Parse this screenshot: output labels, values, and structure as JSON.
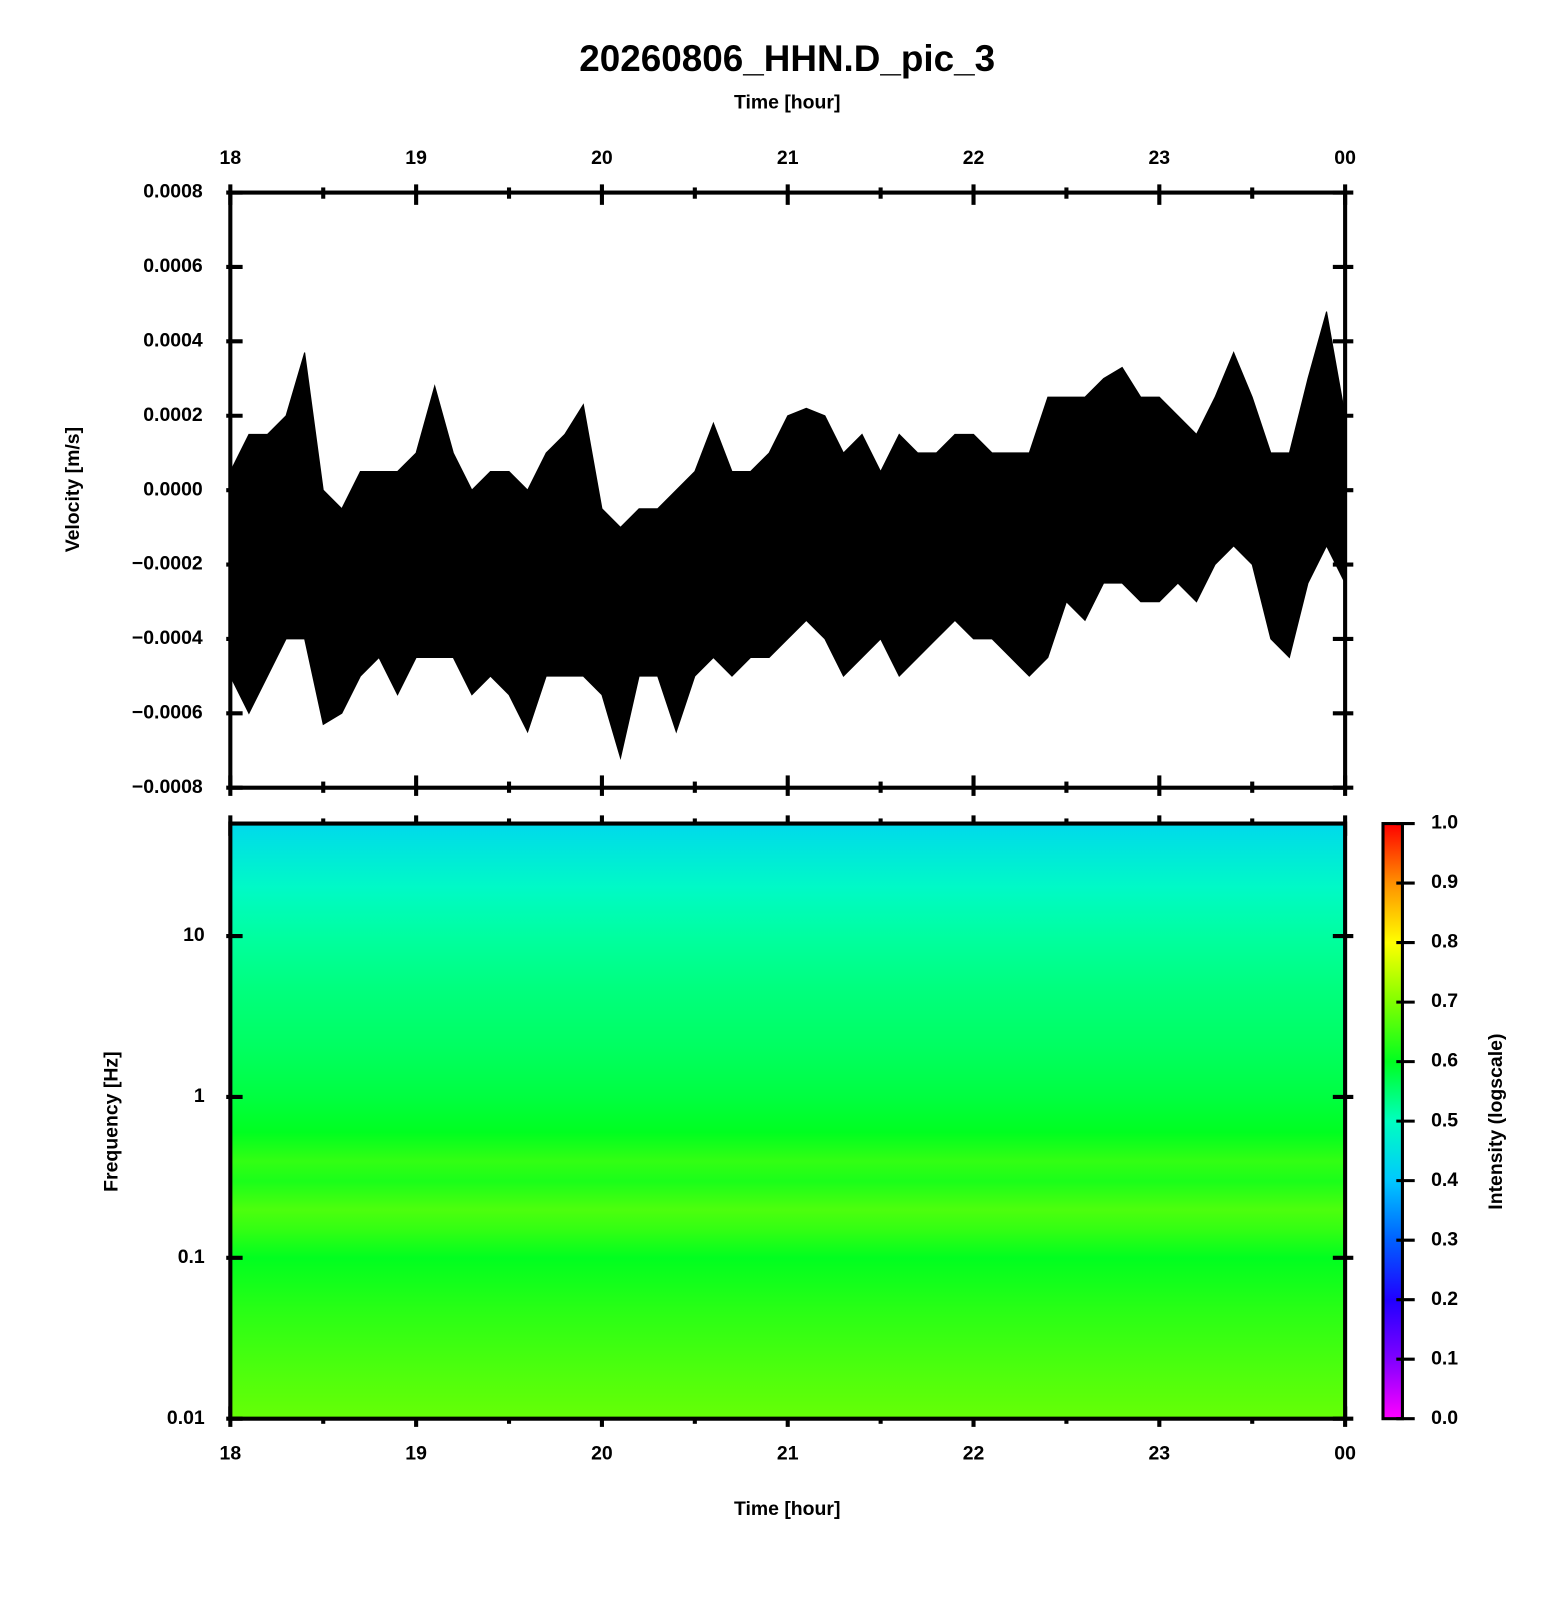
{
  "chart_data": [
    {
      "type": "band",
      "title": "20260806_HHN.D_pic_3",
      "xlabel": "Time [hour]",
      "ylabel": "Velocity [m/s]",
      "color": "#000000",
      "xlim": [
        18,
        24
      ],
      "xticks": [
        18,
        19,
        20,
        21,
        22,
        23,
        {
          "value": 24,
          "label": "00"
        }
      ],
      "xminorticks": [
        18.5,
        19.5,
        20.5,
        21.5,
        22.5,
        23.5
      ],
      "ylim": [
        -0.0008,
        0.0008
      ],
      "yticks": [
        {
          "value": -0.0008,
          "label": "−0.0008"
        },
        {
          "value": -0.0006,
          "label": "−0.0006"
        },
        {
          "value": -0.0004,
          "label": "−0.0004"
        },
        {
          "value": -0.0002,
          "label": "−0.0002"
        },
        {
          "value": 0,
          "label": "0.0000"
        },
        0.0002,
        0.0004,
        0.0006,
        0.0008
      ],
      "x": [
        18,
        18.1,
        18.2,
        18.3,
        18.4,
        18.5,
        18.6,
        18.7,
        18.8,
        18.9,
        19,
        19.1,
        19.2,
        19.3,
        19.4,
        19.5,
        19.6,
        19.7,
        19.8,
        19.9,
        20,
        20.1,
        20.2,
        20.3,
        20.4,
        20.5,
        20.6,
        20.7,
        20.8,
        20.9,
        21,
        21.1,
        21.2,
        21.3,
        21.4,
        21.5,
        21.6,
        21.7,
        21.8,
        21.9,
        22,
        22.1,
        22.2,
        22.3,
        22.4,
        22.5,
        22.6,
        22.7,
        22.8,
        22.9,
        23,
        23.1,
        23.2,
        23.3,
        23.4,
        23.5,
        23.6,
        23.7,
        23.8,
        23.9,
        24
      ],
      "high": [
        5e-05,
        0.00015,
        0.00015,
        0.0002,
        0.00037,
        0,
        -5e-05,
        5e-05,
        5e-05,
        5e-05,
        0.0001,
        0.00028,
        0.0001,
        0,
        5e-05,
        5e-05,
        0,
        0.0001,
        0.00015,
        0.00023,
        -5e-05,
        -0.0001,
        -5e-05,
        -5e-05,
        0,
        5e-05,
        0.00018,
        5e-05,
        5e-05,
        0.0001,
        0.0002,
        0.00022,
        0.0002,
        0.0001,
        0.00015,
        5e-05,
        0.00015,
        0.0001,
        0.0001,
        0.00015,
        0.00015,
        0.0001,
        0.0001,
        0.0001,
        0.00025,
        0.00025,
        0.00025,
        0.0003,
        0.00033,
        0.00025,
        0.00025,
        0.0002,
        0.00015,
        0.00025,
        0.00037,
        0.00025,
        0.0001,
        0.0001,
        0.0003,
        0.00048,
        0.0002
      ],
      "low": [
        -0.0005,
        -0.0006,
        -0.0005,
        -0.0004,
        -0.0004,
        -0.00063,
        -0.0006,
        -0.0005,
        -0.00045,
        -0.00055,
        -0.00045,
        -0.00045,
        -0.00045,
        -0.00055,
        -0.0005,
        -0.00055,
        -0.00065,
        -0.0005,
        -0.0005,
        -0.0005,
        -0.00055,
        -0.00072,
        -0.0005,
        -0.0005,
        -0.00065,
        -0.0005,
        -0.00045,
        -0.0005,
        -0.00045,
        -0.00045,
        -0.0004,
        -0.00035,
        -0.0004,
        -0.0005,
        -0.00045,
        -0.0004,
        -0.0005,
        -0.00045,
        -0.0004,
        -0.00035,
        -0.0004,
        -0.0004,
        -0.00045,
        -0.0005,
        -0.00045,
        -0.0003,
        -0.00035,
        -0.00025,
        -0.00025,
        -0.0003,
        -0.0003,
        -0.00025,
        -0.0003,
        -0.0002,
        -0.00015,
        -0.0002,
        -0.0004,
        -0.00045,
        -0.00025,
        -0.00015,
        -0.00025
      ]
    },
    {
      "type": "spectrogram",
      "xlabel": "Time [hour]",
      "ylabel": "Frequency [Hz]",
      "xlim": [
        18,
        24
      ],
      "xticks": [
        18,
        19,
        20,
        21,
        22,
        23,
        {
          "value": 24,
          "label": "00"
        }
      ],
      "xminorticks": [
        18.5,
        19.5,
        20.5,
        21.5,
        22.5,
        23.5
      ],
      "log_y": true,
      "ylim": [
        0.01,
        50
      ],
      "yticks": [
        0.01,
        0.1,
        1,
        10
      ],
      "frequencies": [
        0.01,
        0.02,
        0.05,
        0.1,
        0.15,
        0.2,
        0.3,
        0.4,
        0.6,
        1,
        2,
        5,
        10,
        20,
        50
      ],
      "values": [
        0.68,
        0.66,
        0.63,
        0.6,
        0.64,
        0.66,
        0.62,
        0.64,
        0.6,
        0.58,
        0.56,
        0.54,
        0.52,
        0.49,
        0.43
      ],
      "colorbar": {
        "label": "Intensity (logscale)",
        "lim": [
          0,
          1
        ],
        "ticks": [
          {
            "value": 0,
            "label": "0.0"
          },
          0.1,
          0.2,
          0.3,
          0.4,
          0.5,
          0.6,
          0.7,
          0.8,
          0.9,
          {
            "value": 1,
            "label": "1.0"
          }
        ],
        "colors": [
          "#ff00ff",
          "#8000ff",
          "#2000ff",
          "#0060ff",
          "#00c8ff",
          "#00ffc0",
          "#00ff20",
          "#80ff00",
          "#ffff00",
          "#ff9000",
          "#ff0000"
        ]
      }
    }
  ]
}
